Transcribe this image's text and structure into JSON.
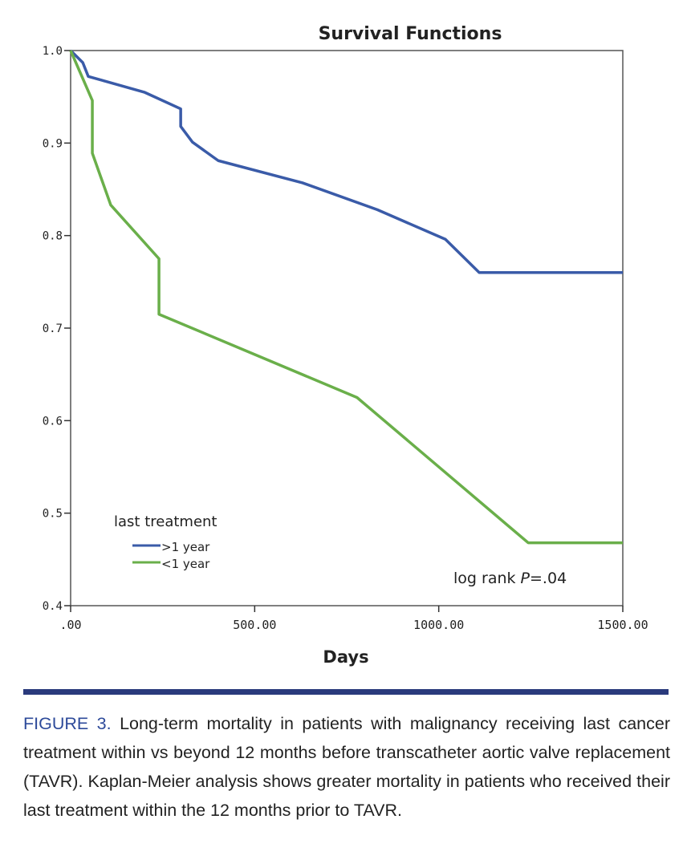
{
  "chart_data": {
    "type": "line",
    "title": "Survival Functions",
    "xlabel": "Days",
    "ylabel": "",
    "xlim": [
      0,
      1500
    ],
    "ylim": [
      0.4,
      1.0
    ],
    "xticks": [
      ".00",
      "500.00",
      "1000.00",
      "1500.00"
    ],
    "xtick_values": [
      0,
      500,
      1000,
      1500
    ],
    "yticks": [
      "0.4",
      "0.5",
      "0.6",
      "0.7",
      "0.8",
      "0.9",
      "1.0"
    ],
    "ytick_values": [
      0.4,
      0.5,
      0.6,
      0.7,
      0.8,
      0.9,
      1.0
    ],
    "grid": false,
    "legend_title": "last treatment",
    "legend_position": "bottom-left",
    "annotation": {
      "prefix": "log rank ",
      "italic": "P",
      "suffix": "=.04"
    },
    "series": [
      {
        "name": ">1 year",
        "color": "#3a5ba8",
        "x": [
          0,
          33,
          48,
          200,
          299,
          299,
          331,
          401,
          630,
          833,
          1018,
          1110,
          1500
        ],
        "y": [
          1.0,
          0.987,
          0.972,
          0.955,
          0.937,
          0.918,
          0.901,
          0.881,
          0.857,
          0.828,
          0.796,
          0.76,
          0.76
        ]
      },
      {
        "name": "<1 year",
        "color": "#6aaf4a",
        "x": [
          0,
          59,
          59,
          109,
          240,
          240,
          778,
          1243,
          1500
        ],
        "y": [
          1.0,
          0.946,
          0.889,
          0.833,
          0.775,
          0.715,
          0.625,
          0.468,
          0.468
        ]
      }
    ]
  },
  "caption": {
    "label": "FIGURE 3.",
    "text": " Long-term mortality in patients with malignancy receiving last cancer treatment within vs beyond 12 months before transcatheter aortic valve replacement (TAVR). Kaplan-Meier analysis shows greater mortality in patients who received their last treatment within the 12 months prior to TAVR."
  }
}
